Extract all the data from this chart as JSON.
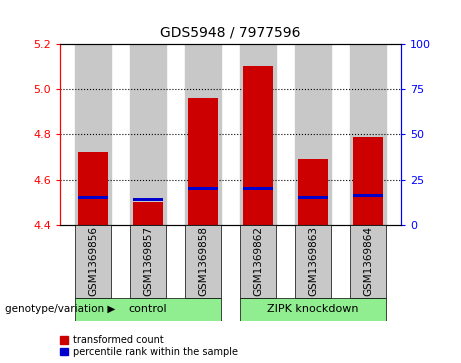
{
  "title": "GDS5948 / 7977596",
  "samples": [
    "GSM1369856",
    "GSM1369857",
    "GSM1369858",
    "GSM1369862",
    "GSM1369863",
    "GSM1369864"
  ],
  "red_values": [
    4.72,
    4.5,
    4.96,
    5.1,
    4.69,
    4.79
  ],
  "blue_values": [
    4.515,
    4.505,
    4.555,
    4.555,
    4.515,
    4.525
  ],
  "blue_bar_height": 0.013,
  "bar_base": 4.4,
  "ylim_left": [
    4.4,
    5.2
  ],
  "ylim_right": [
    0,
    100
  ],
  "yticks_left": [
    4.4,
    4.6,
    4.8,
    5.0,
    5.2
  ],
  "yticks_right": [
    0,
    25,
    50,
    75,
    100
  ],
  "grid_values": [
    4.6,
    4.8,
    5.0
  ],
  "control_indices": [
    0,
    1,
    2
  ],
  "zipk_indices": [
    3,
    4,
    5
  ],
  "group_label": "genotype/variation",
  "control_label": "control",
  "zipk_label": "ZIPK knockdown",
  "group_color": "#90EE90",
  "legend_items": [
    {
      "label": "transformed count",
      "color": "#CC0000"
    },
    {
      "label": "percentile rank within the sample",
      "color": "#0000CC"
    }
  ],
  "bar_width": 0.55,
  "bar_gap": 0.1,
  "red_color": "#CC0000",
  "blue_color": "#0000CC",
  "sample_bg_color": "#C8C8C8",
  "plot_bg": "#FFFFFF",
  "title_fontsize": 10,
  "tick_fontsize": 8,
  "label_fontsize": 7.5,
  "group_fontsize": 8
}
